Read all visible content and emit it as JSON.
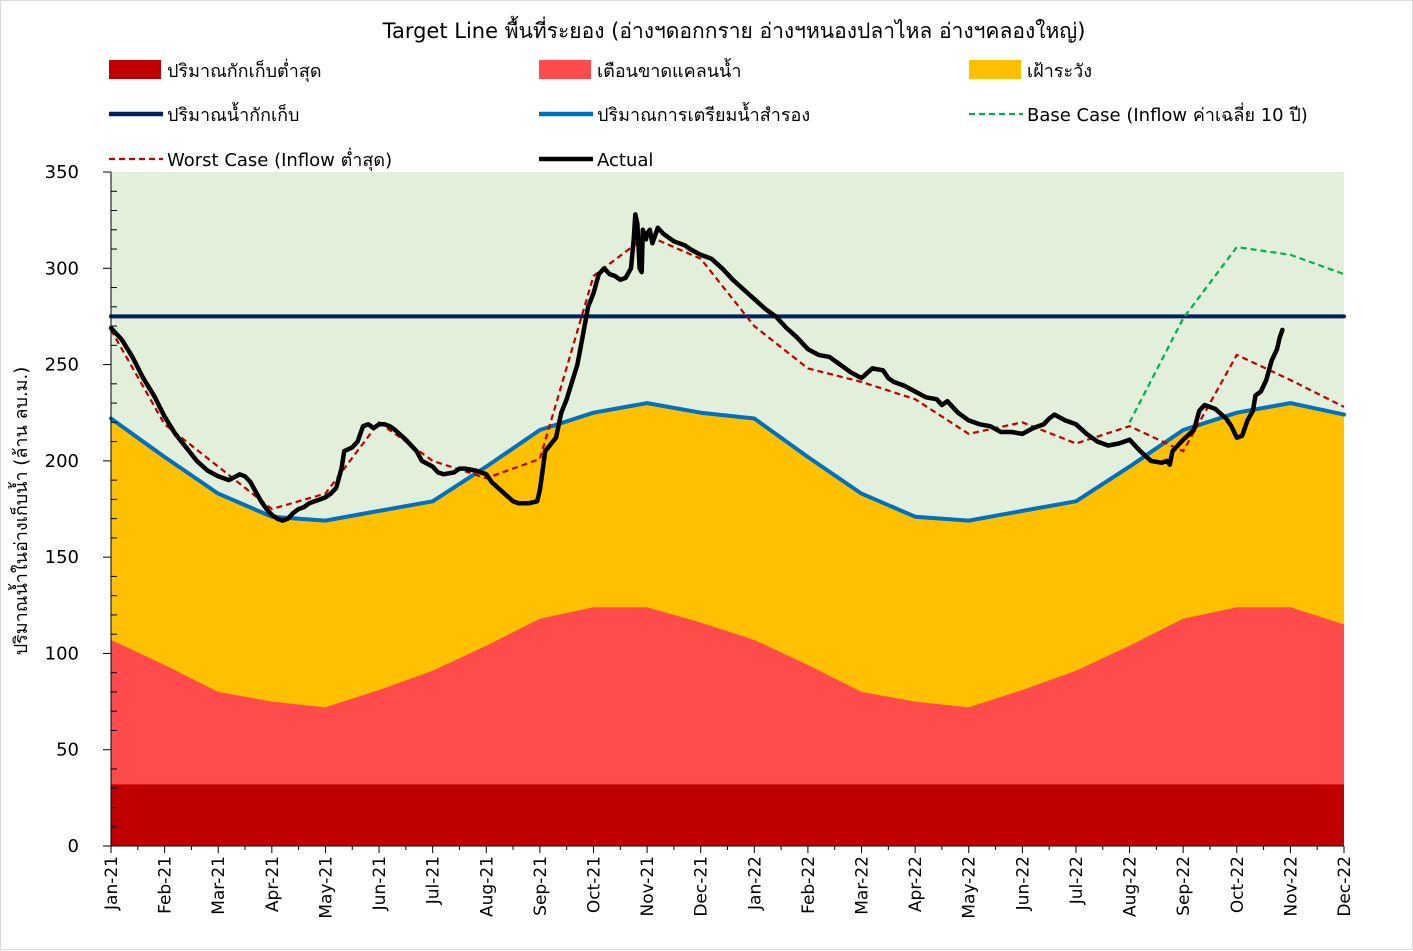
{
  "chart_data": {
    "type": "area",
    "title": "Target Line พื้นที่ระยอง (อ่างฯดอกกราย อ่างฯหนองปลาไหล อ่างฯคลองใหญ่)",
    "xlabel": "",
    "ylabel": "ปริมาณน้ำในอ่างเก็บน้ำ (ล้าน ลบ.ม.)",
    "ylim": [
      0,
      350
    ],
    "yticks": [
      0,
      50,
      100,
      150,
      200,
      250,
      300,
      350
    ],
    "categories": [
      "Jan-21",
      "Feb-21",
      "Mar-21",
      "Apr-21",
      "May-21",
      "Jun-21",
      "Jul-21",
      "Aug-21",
      "Sep-21",
      "Oct-21",
      "Nov-21",
      "Dec-21",
      "Jan-22",
      "Feb-22",
      "Mar-22",
      "Apr-22",
      "May-22",
      "Jun-22",
      "Jul-22",
      "Aug-22",
      "Sep-22",
      "Oct-22",
      "Nov-22",
      "Dec-22"
    ],
    "grid": false,
    "background_color": "#E2EFDA",
    "legend_position": "top",
    "series": [
      {
        "name": "ปริมาณกักเก็บต่ำสุด",
        "kind": "area",
        "color": "#C00000",
        "values": [
          32,
          32,
          32,
          32,
          32,
          32,
          32,
          32,
          32,
          32,
          32,
          32,
          32,
          32,
          32,
          32,
          32,
          32,
          32,
          32,
          32,
          32,
          32,
          32
        ]
      },
      {
        "name": "เตือนขาดแคลนน้ำ",
        "kind": "area",
        "color": "#FF4B4B",
        "values": [
          107,
          94,
          80,
          75,
          72,
          81,
          91,
          104,
          118,
          124,
          124,
          116,
          107,
          94,
          80,
          75,
          72,
          81,
          91,
          104,
          118,
          124,
          124,
          115
        ]
      },
      {
        "name": "เฝ้าระวัง",
        "kind": "area",
        "color": "#FFC000",
        "values": [
          222,
          202,
          183,
          171,
          169,
          174,
          179,
          197,
          216,
          225,
          230,
          225,
          222,
          202,
          183,
          171,
          169,
          174,
          179,
          197,
          216,
          225,
          230,
          224
        ]
      },
      {
        "name": "ปริมาณน้ำกักเก็บ",
        "kind": "line",
        "color": "#002060",
        "dash": "solid",
        "values": [
          275,
          275,
          275,
          275,
          275,
          275,
          275,
          275,
          275,
          275,
          275,
          275,
          275,
          275,
          275,
          275,
          275,
          275,
          275,
          275,
          275,
          275,
          275,
          275
        ]
      },
      {
        "name": "ปริมาณการเตรียมน้ำสำรอง",
        "kind": "line",
        "color": "#0070C0",
        "dash": "solid",
        "values": [
          222,
          202,
          183,
          171,
          169,
          174,
          179,
          197,
          216,
          225,
          230,
          225,
          222,
          202,
          183,
          171,
          169,
          174,
          179,
          197,
          216,
          225,
          230,
          224
        ]
      },
      {
        "name": "Base Case (Inflow ค่าเฉลี่ย 10 ปี)",
        "kind": "line",
        "color": "#00B050",
        "dash": "dash",
        "x": [
          "Aug-22",
          "Sep-22",
          "Oct-22",
          "Nov-22",
          "Dec-22"
        ],
        "values": [
          220,
          274,
          311,
          307,
          297
        ]
      },
      {
        "name": "Worst Case (Inflow ต่ำสุด)",
        "kind": "line",
        "color": "#C00000",
        "dash": "dash",
        "values": [
          268,
          219,
          197,
          175,
          183,
          220,
          200,
          191,
          201,
          296,
          317,
          305,
          270,
          248,
          241,
          232,
          214,
          220,
          209,
          218,
          205,
          255,
          242,
          228
        ]
      },
      {
        "name": "Actual",
        "kind": "line",
        "color": "#000000",
        "dash": "solid",
        "points": [
          [
            0.0,
            269
          ],
          [
            0.2,
            263
          ],
          [
            0.4,
            254
          ],
          [
            0.6,
            243
          ],
          [
            0.8,
            234
          ],
          [
            1.0,
            223
          ],
          [
            1.2,
            214
          ],
          [
            1.4,
            207
          ],
          [
            1.6,
            200
          ],
          [
            1.8,
            195
          ],
          [
            2.0,
            192
          ],
          [
            2.2,
            190
          ],
          [
            2.4,
            193
          ],
          [
            2.5,
            192
          ],
          [
            2.6,
            189
          ],
          [
            2.7,
            184
          ],
          [
            2.8,
            179
          ],
          [
            2.9,
            175
          ],
          [
            3.0,
            172
          ],
          [
            3.1,
            170
          ],
          [
            3.2,
            169
          ],
          [
            3.3,
            170
          ],
          [
            3.4,
            173
          ],
          [
            3.5,
            175
          ],
          [
            3.6,
            176
          ],
          [
            3.7,
            178
          ],
          [
            3.8,
            179
          ],
          [
            3.9,
            180
          ],
          [
            4.0,
            181
          ],
          [
            4.1,
            183
          ],
          [
            4.2,
            186
          ],
          [
            4.3,
            196
          ],
          [
            4.35,
            205
          ],
          [
            4.5,
            207
          ],
          [
            4.6,
            210
          ],
          [
            4.7,
            218
          ],
          [
            4.8,
            219
          ],
          [
            4.9,
            217
          ],
          [
            5.0,
            219
          ],
          [
            5.1,
            219
          ],
          [
            5.2,
            218
          ],
          [
            5.3,
            216
          ],
          [
            5.5,
            211
          ],
          [
            5.7,
            205
          ],
          [
            5.8,
            200
          ],
          [
            6.0,
            197
          ],
          [
            6.1,
            194
          ],
          [
            6.2,
            193
          ],
          [
            6.4,
            194
          ],
          [
            6.5,
            196
          ],
          [
            6.6,
            196
          ],
          [
            6.8,
            195
          ],
          [
            7.0,
            193
          ],
          [
            7.1,
            189
          ],
          [
            7.3,
            184
          ],
          [
            7.5,
            179
          ],
          [
            7.6,
            178
          ],
          [
            7.8,
            178
          ],
          [
            7.95,
            179
          ],
          [
            8.0,
            185
          ],
          [
            8.05,
            195
          ],
          [
            8.1,
            205
          ],
          [
            8.3,
            212
          ],
          [
            8.4,
            225
          ],
          [
            8.5,
            232
          ],
          [
            8.6,
            241
          ],
          [
            8.7,
            250
          ],
          [
            8.8,
            265
          ],
          [
            8.9,
            280
          ],
          [
            9.0,
            287
          ],
          [
            9.1,
            297
          ],
          [
            9.2,
            300
          ],
          [
            9.3,
            297
          ],
          [
            9.4,
            296
          ],
          [
            9.5,
            294
          ],
          [
            9.6,
            295
          ],
          [
            9.7,
            300
          ],
          [
            9.75,
            315
          ],
          [
            9.78,
            328
          ],
          [
            9.82,
            323
          ],
          [
            9.86,
            300
          ],
          [
            9.9,
            298
          ],
          [
            9.92,
            320
          ],
          [
            9.98,
            315
          ],
          [
            10.0,
            318
          ],
          [
            10.05,
            320
          ],
          [
            10.1,
            313
          ],
          [
            10.2,
            321
          ],
          [
            10.3,
            318
          ],
          [
            10.4,
            316
          ],
          [
            10.5,
            314
          ],
          [
            10.6,
            313
          ],
          [
            10.7,
            312
          ],
          [
            10.8,
            310
          ],
          [
            11.0,
            307
          ],
          [
            11.2,
            305
          ],
          [
            11.4,
            300
          ],
          [
            11.6,
            294
          ],
          [
            11.8,
            289
          ],
          [
            12.0,
            284
          ],
          [
            12.2,
            279
          ],
          [
            12.4,
            275
          ],
          [
            12.6,
            269
          ],
          [
            12.8,
            264
          ],
          [
            13.0,
            258
          ],
          [
            13.2,
            255
          ],
          [
            13.4,
            254
          ],
          [
            13.5,
            252
          ],
          [
            13.6,
            250
          ],
          [
            13.8,
            246
          ],
          [
            14.0,
            243
          ],
          [
            14.2,
            248
          ],
          [
            14.4,
            247
          ],
          [
            14.5,
            243
          ],
          [
            14.6,
            241
          ],
          [
            14.8,
            239
          ],
          [
            15.0,
            236
          ],
          [
            15.2,
            233
          ],
          [
            15.4,
            232
          ],
          [
            15.5,
            229
          ],
          [
            15.6,
            231
          ],
          [
            15.8,
            225
          ],
          [
            16.0,
            221
          ],
          [
            16.2,
            219
          ],
          [
            16.4,
            218
          ],
          [
            16.6,
            215
          ],
          [
            16.8,
            215
          ],
          [
            17.0,
            214
          ],
          [
            17.2,
            217
          ],
          [
            17.4,
            219
          ],
          [
            17.5,
            222
          ],
          [
            17.6,
            224
          ],
          [
            17.8,
            221
          ],
          [
            18.0,
            219
          ],
          [
            18.2,
            214
          ],
          [
            18.4,
            210
          ],
          [
            18.6,
            208
          ],
          [
            18.8,
            209
          ],
          [
            19.0,
            211
          ],
          [
            19.2,
            205
          ],
          [
            19.4,
            200
          ],
          [
            19.6,
            199
          ],
          [
            19.7,
            200
          ],
          [
            19.75,
            198
          ],
          [
            19.8,
            205
          ],
          [
            19.9,
            208
          ],
          [
            20.0,
            211
          ],
          [
            20.2,
            216
          ],
          [
            20.3,
            226
          ],
          [
            20.4,
            229
          ],
          [
            20.6,
            227
          ],
          [
            20.8,
            222
          ],
          [
            20.9,
            218
          ],
          [
            21.0,
            212
          ],
          [
            21.1,
            213
          ],
          [
            21.2,
            221
          ],
          [
            21.3,
            226
          ],
          [
            21.35,
            234
          ],
          [
            21.45,
            236
          ],
          [
            21.55,
            242
          ],
          [
            21.65,
            252
          ],
          [
            21.75,
            258
          ],
          [
            21.8,
            264
          ],
          [
            21.85,
            268
          ]
        ]
      }
    ]
  }
}
